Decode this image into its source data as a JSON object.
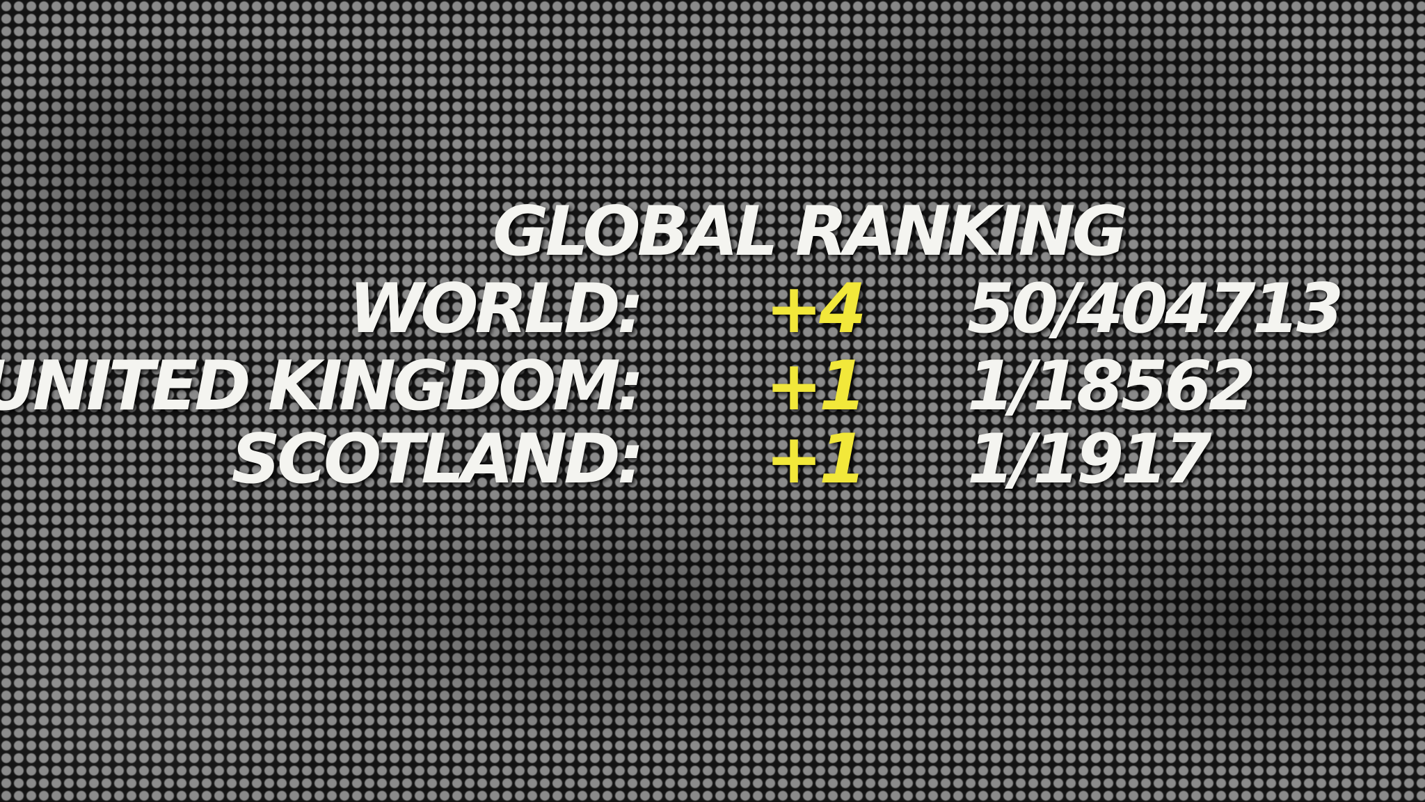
{
  "ranking": {
    "title": "GLOBAL RANKING",
    "rows": [
      {
        "label": "WORLD:",
        "change": "+4",
        "rank": "50/404713"
      },
      {
        "label": "UNITED KINGDOM:",
        "change": "+1",
        "rank": "1/18562"
      },
      {
        "label": "SCOTLAND:",
        "change": "+1",
        "rank": "1/1917"
      }
    ]
  }
}
